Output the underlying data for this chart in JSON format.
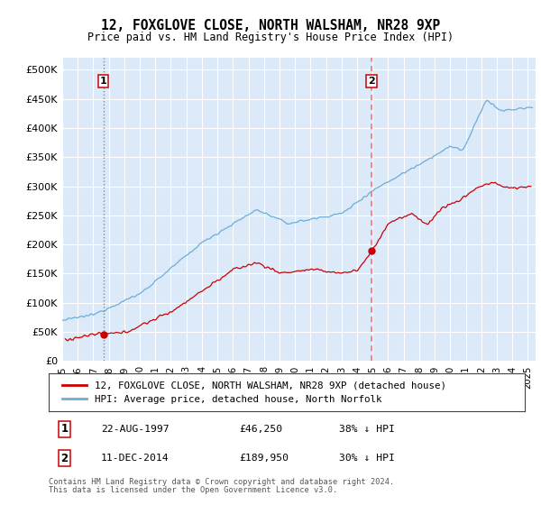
{
  "title": "12, FOXGLOVE CLOSE, NORTH WALSHAM, NR28 9XP",
  "subtitle": "Price paid vs. HM Land Registry's House Price Index (HPI)",
  "ylabel_ticks": [
    "£0",
    "£50K",
    "£100K",
    "£150K",
    "£200K",
    "£250K",
    "£300K",
    "£350K",
    "£400K",
    "£450K",
    "£500K"
  ],
  "ytick_values": [
    0,
    50000,
    100000,
    150000,
    200000,
    250000,
    300000,
    350000,
    400000,
    450000,
    500000
  ],
  "xlim_start": 1995.0,
  "xlim_end": 2025.5,
  "ylim_top": 500000,
  "bg_color": "#dce9f8",
  "grid_color": "#ffffff",
  "hpi_color": "#6baed6",
  "price_color": "#cc0000",
  "vline1_color": "#aaaaaa",
  "vline2_color": "#ff6666",
  "sale1_date": 1997.644,
  "sale1_price": 46250,
  "sale1_label": "1",
  "sale1_date_str": "22-AUG-1997",
  "sale1_price_str": "£46,250",
  "sale1_hpi_str": "38% ↓ HPI",
  "sale2_date": 2014.944,
  "sale2_price": 189950,
  "sale2_label": "2",
  "sale2_date_str": "11-DEC-2014",
  "sale2_price_str": "£189,950",
  "sale2_hpi_str": "30% ↓ HPI",
  "legend_line1": "12, FOXGLOVE CLOSE, NORTH WALSHAM, NR28 9XP (detached house)",
  "legend_line2": "HPI: Average price, detached house, North Norfolk",
  "footer1": "Contains HM Land Registry data © Crown copyright and database right 2024.",
  "footer2": "This data is licensed under the Open Government Licence v3.0."
}
